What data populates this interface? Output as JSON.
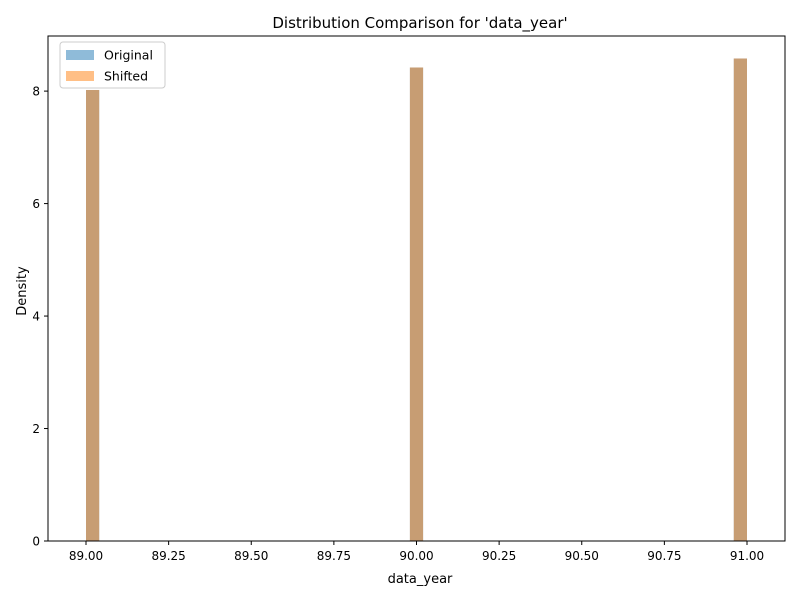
{
  "chart_data": {
    "type": "bar",
    "title": "Distribution Comparison for 'data_year'",
    "xlabel": "data_year",
    "ylabel": "Density",
    "xlim": [
      88.885,
      91.115
    ],
    "ylim": [
      0,
      8.98
    ],
    "xticks": [
      89.0,
      89.25,
      89.5,
      89.75,
      90.0,
      90.25,
      90.5,
      90.75,
      91.0
    ],
    "xtick_labels": [
      "89.00",
      "89.25",
      "89.50",
      "89.75",
      "90.00",
      "90.25",
      "90.50",
      "90.75",
      "91.00"
    ],
    "yticks": [
      0,
      2,
      4,
      6,
      8
    ],
    "ytick_labels": [
      "0",
      "2",
      "4",
      "6",
      "8"
    ],
    "grid": false,
    "legend_position": "top-left",
    "bin_width": 0.04,
    "series": [
      {
        "name": "Original",
        "color": "#1f77b4",
        "opacity": 0.5,
        "bins": [
          {
            "x0": 89.0,
            "x1": 89.04,
            "density": 8.02
          },
          {
            "x0": 89.98,
            "x1": 90.02,
            "density": 8.42
          },
          {
            "x0": 90.96,
            "x1": 91.0,
            "density": 8.58
          }
        ]
      },
      {
        "name": "Shifted",
        "color": "#ff7f0e",
        "opacity": 0.5,
        "bins": [
          {
            "x0": 89.0,
            "x1": 89.04,
            "density": 8.02
          },
          {
            "x0": 89.98,
            "x1": 90.02,
            "density": 8.42
          },
          {
            "x0": 90.96,
            "x1": 91.0,
            "density": 8.58
          }
        ]
      }
    ]
  }
}
